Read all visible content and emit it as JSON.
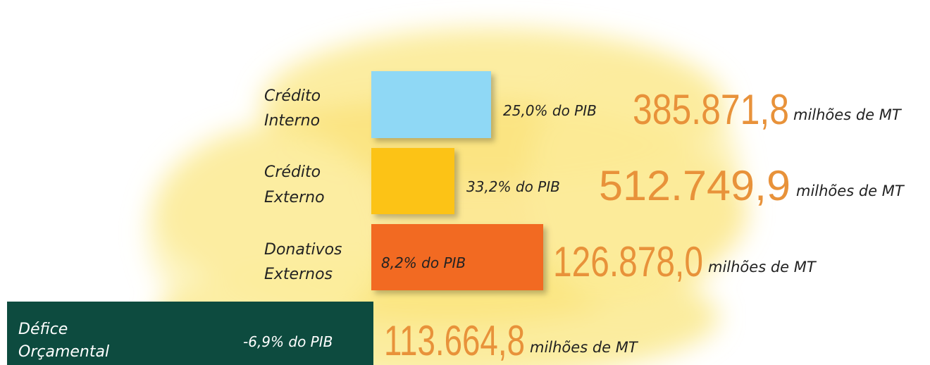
{
  "items": [
    {
      "label": [
        "Crédito",
        "Interno"
      ],
      "share": "25,0% do PIB",
      "amount": "385.871,8",
      "unit": "milhões de MT"
    },
    {
      "label": [
        "Crédito",
        "Externo"
      ],
      "share": "33,2% do PIB",
      "amount": "512.749,9",
      "unit": "milhões de MT"
    },
    {
      "label": [
        "Donativos",
        "Externos"
      ],
      "share": "8,2% do PIB",
      "amount": "126.878,0",
      "unit": "milhões de MT"
    },
    {
      "label": [
        "Défice",
        "Orçamental"
      ],
      "share": "-6,9% do PIB",
      "amount": "113.664,8",
      "unit": "milhões de MT"
    }
  ]
}
